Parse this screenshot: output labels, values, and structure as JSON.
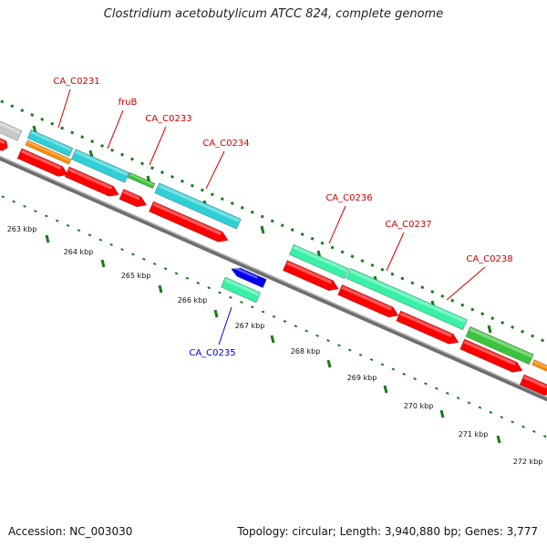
{
  "title": "Clostridium acetobutylicum ATCC 824, complete genome",
  "footer": {
    "accession": "Accession: NC_003030",
    "summary": "Topology: circular; Length: 3,940,880 bp; Genes: 3,777"
  },
  "colors": {
    "gene_label": "#cc0000",
    "gene_label_minus": "#0000cc",
    "scale_tick": "#1a7a1a",
    "backbone": "#888888",
    "cds_forward_red": "#ff0000",
    "cds_cyan": "#2ecfd6",
    "cds_mint": "#39f0a6",
    "cds_green": "#3bc43b",
    "cds_orange": "#ff8c00",
    "cds_blue": "#0000ee",
    "cds_grey": "#c8c8c8"
  },
  "kbp_labels": [
    "263 kbp",
    "264 kbp",
    "265 kbp",
    "266 kbp",
    "267 kbp",
    "268 kbp",
    "269 kbp",
    "270 kbp",
    "271 kbp",
    "272 kbp"
  ],
  "gene_labels": [
    {
      "text": "CA_C0231",
      "strand": "plus"
    },
    {
      "text": "fruB",
      "strand": "plus"
    },
    {
      "text": "CA_C0233",
      "strand": "plus"
    },
    {
      "text": "CA_C0234",
      "strand": "plus"
    },
    {
      "text": "CA_C0235",
      "strand": "minus"
    },
    {
      "text": "CA_C0236",
      "strand": "plus"
    },
    {
      "text": "CA_C0237",
      "strand": "plus"
    },
    {
      "text": "CA_C0238",
      "strand": "plus"
    }
  ]
}
